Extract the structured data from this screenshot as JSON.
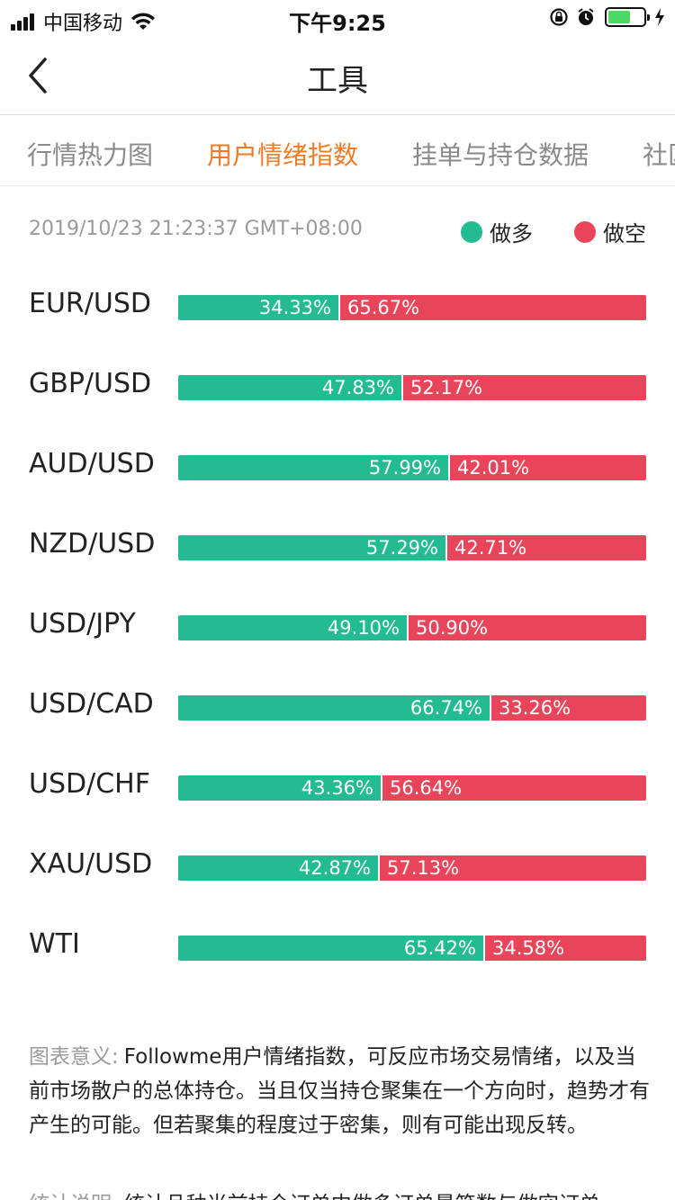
{
  "status_bar": {
    "carrier": "中国移动",
    "time": "下午9:25"
  },
  "nav": {
    "title": "工具"
  },
  "tabs": [
    {
      "label": "行情热力图",
      "active": false
    },
    {
      "label": "用户情绪指数",
      "active": true
    },
    {
      "label": "挂单与持仓数据",
      "active": false
    },
    {
      "label": "社区",
      "active": false
    }
  ],
  "header": {
    "timestamp": "2019/10/23 21:23:37 GMT+08:00",
    "legend_long": "做多",
    "legend_short": "做空"
  },
  "colors": {
    "long": "#23bb91",
    "short": "#e8455a",
    "accent": "#ef7b24"
  },
  "sentiment": [
    {
      "pair": "EUR/USD",
      "long": 34.33,
      "short": 65.67,
      "long_label": "34.33%",
      "short_label": "65.67%"
    },
    {
      "pair": "GBP/USD",
      "long": 47.83,
      "short": 52.17,
      "long_label": "47.83%",
      "short_label": "52.17%"
    },
    {
      "pair": "AUD/USD",
      "long": 57.99,
      "short": 42.01,
      "long_label": "57.99%",
      "short_label": "42.01%"
    },
    {
      "pair": "NZD/USD",
      "long": 57.29,
      "short": 42.71,
      "long_label": "57.29%",
      "short_label": "42.71%"
    },
    {
      "pair": "USD/JPY",
      "long": 49.1,
      "short": 50.9,
      "long_label": "49.10%",
      "short_label": "50.90%"
    },
    {
      "pair": "USD/CAD",
      "long": 66.74,
      "short": 33.26,
      "long_label": "66.74%",
      "short_label": "33.26%"
    },
    {
      "pair": "USD/CHF",
      "long": 43.36,
      "short": 56.64,
      "long_label": "43.36%",
      "short_label": "56.64%"
    },
    {
      "pair": "XAU/USD",
      "long": 42.87,
      "short": 57.13,
      "long_label": "42.87%",
      "short_label": "57.13%"
    },
    {
      "pair": "WTI",
      "long": 65.42,
      "short": 34.58,
      "long_label": "65.42%",
      "short_label": "34.58%"
    }
  ],
  "description": {
    "label": "图表意义:",
    "text": "Followme用户情绪指数，可反应市场交易情绪，以及当前市场散户的总体持仓。当且仅当持仓聚集在一个方向时，趋势才有产生的可能。但若聚集的程度过于密集，则有可能出现反转。"
  },
  "description2": {
    "label": "统计说明:",
    "text": "统计品种当前持仓订单中做多订单最笔数与做空订单"
  }
}
